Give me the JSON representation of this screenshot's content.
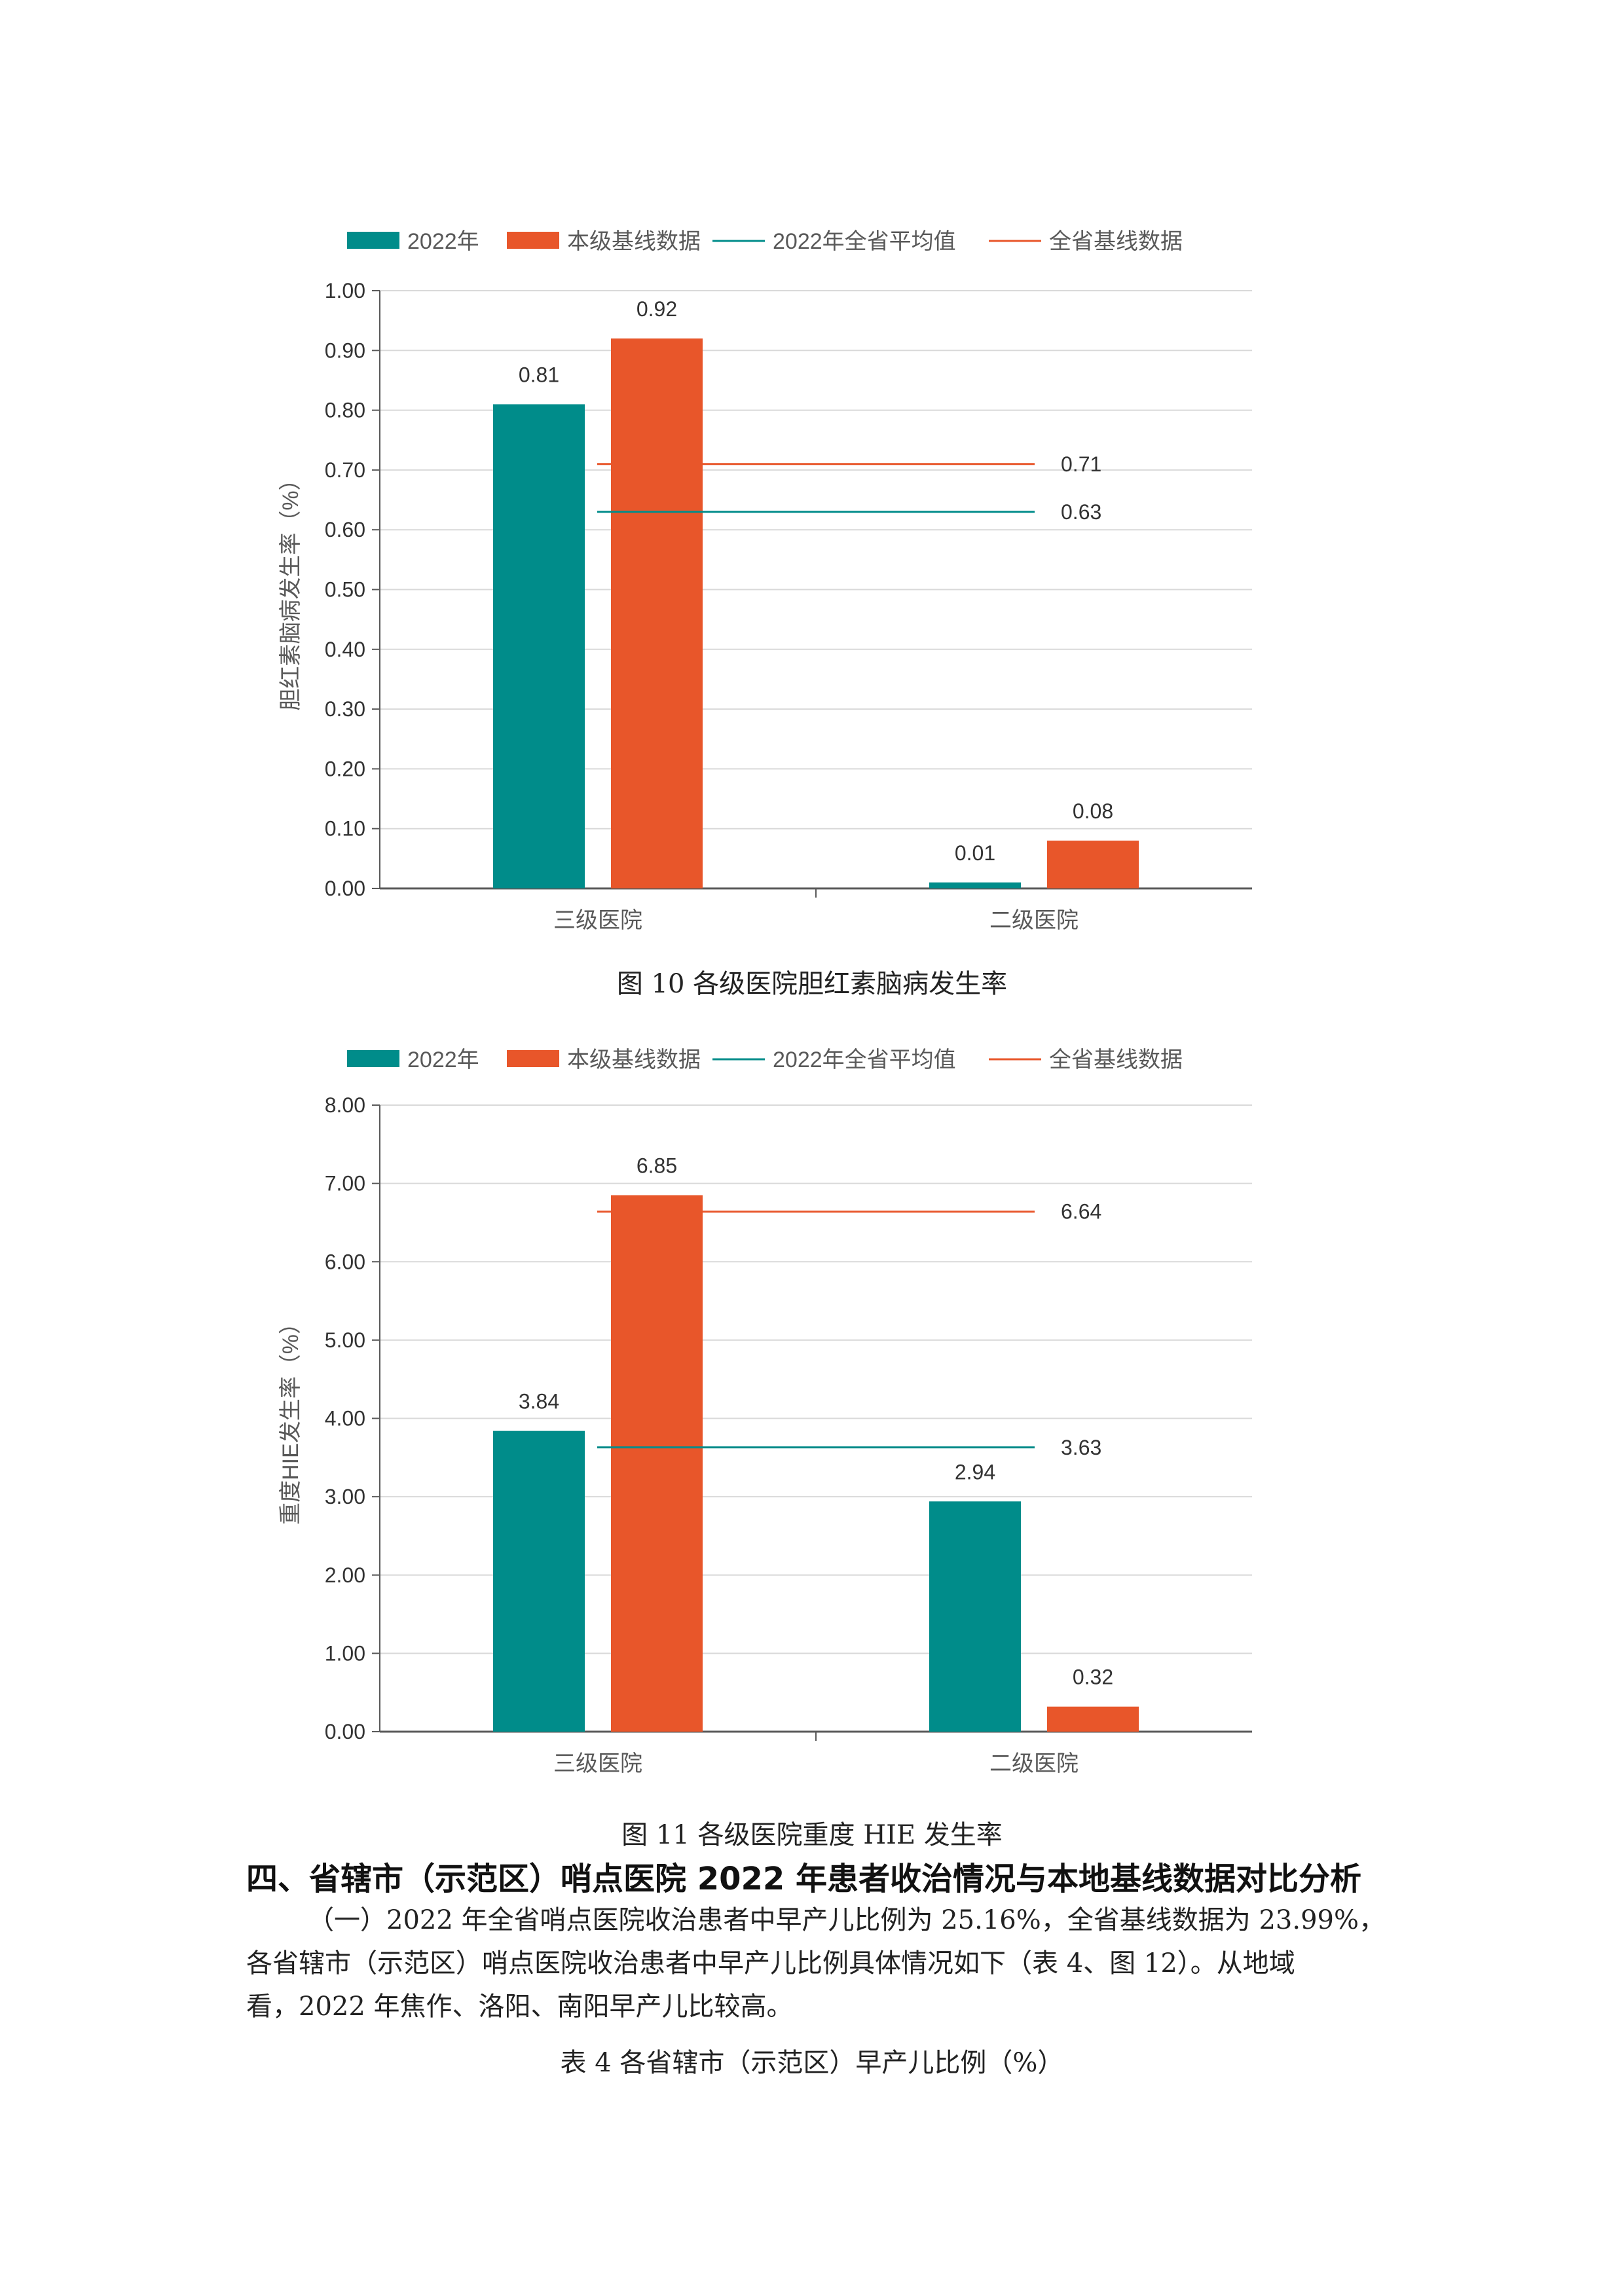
{
  "colors": {
    "teal": "#008C8A",
    "orange": "#E8562A",
    "grid": "#d9d9d9",
    "axis": "#595959",
    "text": "#595959",
    "label": "#333333"
  },
  "legend": {
    "items": [
      {
        "label": "2022年",
        "kind": "box",
        "color": "#008C8A"
      },
      {
        "label": "本级基线数据",
        "kind": "box",
        "color": "#E8562A"
      },
      {
        "label": "2022年全省平均值",
        "kind": "line",
        "color": "#008C8A"
      },
      {
        "label": "全省基线数据",
        "kind": "line",
        "color": "#E8562A"
      }
    ]
  },
  "chart_data": [
    {
      "type": "bar",
      "title": "图 10  各级医院胆红素脑病发生率",
      "ylabel": "胆红素脑病发生率（%）",
      "xlabel": "",
      "categories": [
        "三级医院",
        "二级医院"
      ],
      "series": [
        {
          "name": "2022年",
          "values": [
            0.81,
            0.01
          ],
          "labels": [
            "0.81",
            "0.01"
          ]
        },
        {
          "name": "本级基线数据",
          "values": [
            0.92,
            0.08
          ],
          "labels": [
            "0.92",
            "0.08"
          ]
        }
      ],
      "reference_lines": [
        {
          "name": "全省基线数据",
          "value": 0.71,
          "label": "0.71"
        },
        {
          "name": "2022年全省平均值",
          "value": 0.63,
          "label": "0.63"
        }
      ],
      "ylim": [
        0,
        1.0
      ],
      "yticks": [
        "0.00",
        "0.10",
        "0.20",
        "0.30",
        "0.40",
        "0.50",
        "0.60",
        "0.70",
        "0.80",
        "0.90",
        "1.00"
      ],
      "grid": true,
      "legend_position": "top"
    },
    {
      "type": "bar",
      "title": "图 11  各级医院重度 HIE 发生率",
      "ylabel": "重度HIE发生率（%）",
      "xlabel": "",
      "categories": [
        "三级医院",
        "二级医院"
      ],
      "series": [
        {
          "name": "2022年",
          "values": [
            3.84,
            2.94
          ],
          "labels": [
            "3.84",
            "2.94"
          ]
        },
        {
          "name": "本级基线数据",
          "values": [
            6.85,
            0.32
          ],
          "labels": [
            "6.85",
            "0.32"
          ]
        }
      ],
      "reference_lines": [
        {
          "name": "全省基线数据",
          "value": 6.64,
          "label": "6.64"
        },
        {
          "name": "2022年全省平均值",
          "value": 3.63,
          "label": "3.63"
        }
      ],
      "ylim": [
        0,
        8.0
      ],
      "yticks": [
        "0.00",
        "1.00",
        "2.00",
        "3.00",
        "4.00",
        "5.00",
        "6.00",
        "7.00",
        "8.00"
      ],
      "grid": true,
      "legend_position": "top"
    }
  ],
  "captions": {
    "fig10": "图 10  各级医院胆红素脑病发生率",
    "fig11": "图 11  各级医院重度 HIE 发生率"
  },
  "section": {
    "heading": "四、省辖市（示范区）哨点医院 2022 年患者收治情况与本地基线数据对比分析",
    "para1_line1": "（一）2022 年全省哨点医院收治患者中早产儿比例为 25.16%，全省基线数据为 23.99%，",
    "para1_line2": "各省辖市（示范区）哨点医院收治患者中早产儿比例具体情况如下（表 4、图 12）。从地域",
    "para1_line3": "看，2022 年焦作、洛阳、南阳早产儿比较高。",
    "table_caption": "表 4  各省辖市（示范区）早产儿比例（%）"
  }
}
